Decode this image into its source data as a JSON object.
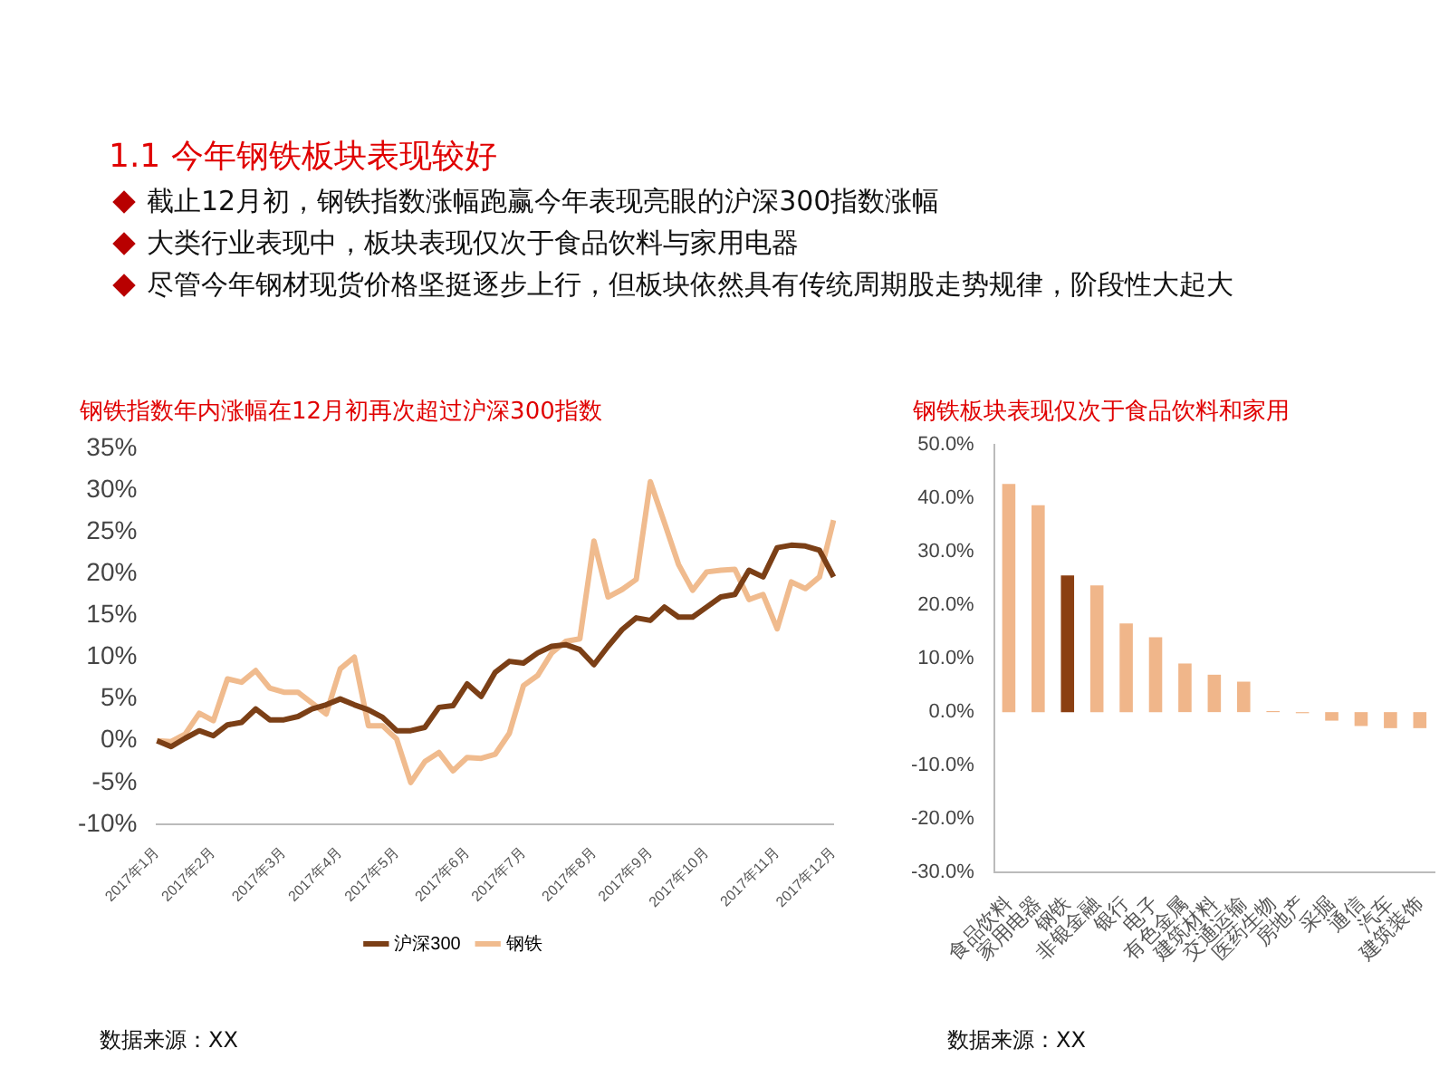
{
  "chart_data": [
    {
      "type": "other",
      "title": "1.1 今年钢铁板块表现较好",
      "annotations": [
        "截止12月初，钢铁指数涨幅跑赢今年表现亮眼的沪深300指数涨幅",
        "大类行业表现中，板块表现仅次于食品饮料与家用电器",
        "尽管今年钢材现货价格坚挺逐步上行，但板块依然具有传统周期股走势规律，阶段性大起大"
      ]
    },
    {
      "type": "line",
      "title": "钢铁指数年内涨幅在12月初再次超过沪深300指数",
      "categories": [
        "2017年1月",
        null,
        null,
        null,
        "2017年2月",
        null,
        null,
        null,
        null,
        "2017年3月",
        null,
        null,
        null,
        "2017年4月",
        null,
        null,
        null,
        "2017年5月",
        null,
        null,
        null,
        null,
        "2017年6月",
        null,
        null,
        null,
        "2017年7月",
        null,
        null,
        null,
        null,
        "2017年8月",
        null,
        null,
        null,
        "2017年9月",
        null,
        null,
        null,
        "2017年10月",
        null,
        null,
        null,
        null,
        "2017年11月",
        null,
        null,
        null,
        "2017年12月"
      ],
      "series": [
        {
          "name": "沪深300",
          "color": "#7b3f16",
          "values": [
            0,
            -0.7,
            0.3,
            1.2,
            0.6,
            1.9,
            2.2,
            3.8,
            2.5,
            2.5,
            2.9,
            3.8,
            4.3,
            5.0,
            4.3,
            3.7,
            2.8,
            1.2,
            1.2,
            1.6,
            4.0,
            4.2,
            6.8,
            5.3,
            8.2,
            9.5,
            9.3,
            10.5,
            11.3,
            11.5,
            10.9,
            9.1,
            11.3,
            13.3,
            14.7,
            14.4,
            16.0,
            14.8,
            14.8,
            16.0,
            17.2,
            17.5,
            20.4,
            19.6,
            23.1,
            23.4,
            23.3,
            22.8,
            19.6
          ]
        },
        {
          "name": "钢铁",
          "color": "#f0bb8e",
          "values": [
            0,
            -0.1,
            0.8,
            3.3,
            2.4,
            7.4,
            7.0,
            8.4,
            6.3,
            5.8,
            5.8,
            4.5,
            3.2,
            8.6,
            10.0,
            1.8,
            1.8,
            0.2,
            -5.0,
            -2.5,
            -1.4,
            -3.6,
            -2.0,
            -2.1,
            -1.6,
            0.9,
            6.6,
            7.8,
            10.5,
            11.9,
            12.2,
            23.9,
            17.2,
            18.1,
            19.3,
            31.0,
            26.1,
            21.1,
            18.0,
            20.2,
            20.4,
            20.5,
            16.9,
            17.5,
            13.4,
            19.0,
            18.2,
            19.6,
            26.4
          ]
        }
      ],
      "ylim": [
        -10,
        35
      ],
      "yticks": [
        {
          "value": -10,
          "label": "-10%"
        },
        {
          "value": -5,
          "label": "-5%"
        },
        {
          "value": 0,
          "label": "0%"
        },
        {
          "value": 5,
          "label": "5%"
        },
        {
          "value": 10,
          "label": "10%"
        },
        {
          "value": 15,
          "label": "15%"
        },
        {
          "value": 20,
          "label": "20%"
        },
        {
          "value": 25,
          "label": "25%"
        },
        {
          "value": 30,
          "label": "30%"
        },
        {
          "value": 35,
          "label": "35%"
        }
      ],
      "legend": "bottom",
      "grid": false,
      "marker": "none",
      "annotations": [
        "数据来源：XX"
      ]
    },
    {
      "type": "bar",
      "title": "钢铁板块表现仅次于食品饮料和家用",
      "categories": [
        "食品饮料",
        "家用电器",
        "钢铁",
        "非银金融",
        "银行",
        "电子",
        "有色金属",
        "建筑材料",
        "交通运输",
        "医药生物",
        "房地产",
        "采掘",
        "通信",
        "汽车",
        "建筑装饰"
      ],
      "values": [
        42.7,
        38.7,
        25.6,
        23.7,
        16.6,
        14.0,
        9.1,
        7.0,
        5.7,
        0.2,
        -0.2,
        -1.6,
        -2.6,
        -3.0,
        -3.0
      ],
      "colors": [
        "#f0b68a",
        "#f0b68a",
        "#8b3f12",
        "#f0b68a",
        "#f0b68a",
        "#f0b68a",
        "#f0b68a",
        "#f0b68a",
        "#f0b68a",
        "#f0b68a",
        "#f0b68a",
        "#f0b68a",
        "#f0b68a",
        "#f0b68a",
        "#f0b68a"
      ],
      "ylim": [
        -30,
        50
      ],
      "yticks": [
        {
          "value": -30,
          "label": "-30.0%"
        },
        {
          "value": -20,
          "label": "-20.0%"
        },
        {
          "value": -10,
          "label": "-10.0%"
        },
        {
          "value": 0,
          "label": "0.0%"
        },
        {
          "value": 10,
          "label": "10.0%"
        },
        {
          "value": 20,
          "label": "20.0%"
        },
        {
          "value": 30,
          "label": "30.0%"
        },
        {
          "value": 40,
          "label": "40.0%"
        },
        {
          "value": 50,
          "label": "50.0%"
        }
      ],
      "grid": false,
      "annotations": [
        "数据来源：XX"
      ]
    }
  ]
}
